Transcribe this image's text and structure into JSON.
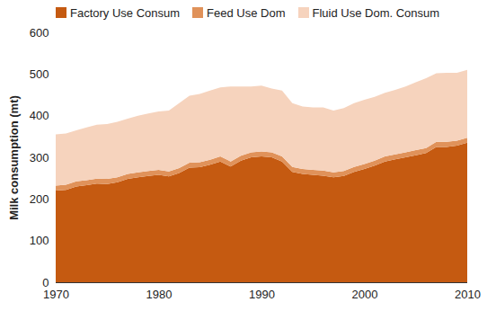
{
  "chart_data": {
    "type": "area",
    "stacked": true,
    "legend": "top",
    "y_label": "Milk consumption (mt)",
    "x": [
      1970,
      1971,
      1972,
      1973,
      1974,
      1975,
      1976,
      1977,
      1978,
      1979,
      1980,
      1981,
      1982,
      1983,
      1984,
      1985,
      1986,
      1987,
      1988,
      1989,
      1990,
      1991,
      1992,
      1993,
      1994,
      1995,
      1996,
      1997,
      1998,
      1999,
      2000,
      2001,
      2002,
      2003,
      2004,
      2005,
      2006,
      2007,
      2008,
      2009,
      2010
    ],
    "series": [
      {
        "name": "Factory Use Consum",
        "color": "#c55a11",
        "values": [
          220,
          222,
          230,
          233,
          237,
          236,
          240,
          248,
          252,
          255,
          258,
          254,
          262,
          275,
          276,
          282,
          290,
          278,
          292,
          300,
          302,
          300,
          290,
          265,
          260,
          258,
          256,
          252,
          255,
          265,
          272,
          280,
          290,
          295,
          300,
          305,
          310,
          325,
          325,
          328,
          335
        ]
      },
      {
        "name": "Feed Use Dom",
        "color": "#e0925a",
        "values": [
          12,
          12,
          12,
          12,
          12,
          12,
          12,
          12,
          12,
          12,
          12,
          12,
          12,
          12,
          12,
          12,
          12,
          12,
          12,
          12,
          12,
          12,
          12,
          12,
          12,
          12,
          12,
          12,
          12,
          12,
          12,
          12,
          12,
          12,
          12,
          12,
          12,
          12,
          12,
          12,
          12
        ]
      },
      {
        "name": "Fluid Use Dom. Consum",
        "color": "#f6d3bd",
        "values": [
          123,
          123,
          123,
          127,
          129,
          132,
          133,
          133,
          136,
          138,
          140,
          146,
          156,
          161,
          164,
          166,
          166,
          180,
          166,
          158,
          158,
          153,
          158,
          153,
          150,
          150,
          152,
          148,
          151,
          153,
          154,
          153,
          153,
          155,
          158,
          163,
          168,
          165,
          166,
          163,
          163
        ]
      }
    ],
    "xlim": [
      1970,
      2010
    ],
    "xticks": [
      1970,
      1980,
      1990,
      2000,
      2010
    ],
    "ylim": [
      0,
      600
    ],
    "yticks": [
      0,
      100,
      200,
      300,
      400,
      500,
      600
    ]
  }
}
